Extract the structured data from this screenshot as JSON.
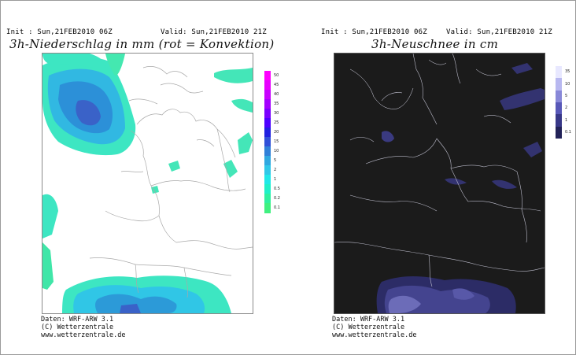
{
  "left_panel": {
    "init": "Init : Sun,21FEB2010 06Z",
    "valid": "Valid: Sun,21FEB2010 21Z",
    "title": "3h-Niederschlag in mm (rot = Konvektion)",
    "colorbar": {
      "ticks": [
        "50",
        "45",
        "40",
        "35",
        "30",
        "25",
        "20",
        "15",
        "10",
        "5",
        "2",
        "1",
        "0.5",
        "0.2",
        "0.1"
      ],
      "colors": [
        "#ff00ff",
        "#e800ff",
        "#c800ff",
        "#a400ff",
        "#7a00ff",
        "#4d00ff",
        "#2020e0",
        "#3050d8",
        "#3080d8",
        "#30a8e0",
        "#30c8e8",
        "#20e8e8",
        "#20f0c8",
        "#30f0a0",
        "#40f080"
      ]
    },
    "footer": {
      "line1": "Daten: WRF-ARW 3.1",
      "line2": "(C) Wetterzentrale",
      "line3": "www.wetterzentrale.de"
    }
  },
  "right_panel": {
    "init": "Init : Sun,21FEB2010 06Z",
    "valid": "Valid: Sun,21FEB2010 21Z",
    "title": "3h-Neuschnee in cm",
    "colorbar": {
      "ticks": [
        "35",
        "10",
        "5",
        "2",
        "1",
        "0.1"
      ],
      "colors": [
        "#e8e8ff",
        "#b8b8f0",
        "#8888d8",
        "#5858b8",
        "#383888",
        "#222258"
      ]
    },
    "footer": {
      "line1": "Daten: WRF-ARW 3.1",
      "line2": "(C) Wetterzentrale",
      "line3": "www.wetterzentrale.de"
    }
  }
}
